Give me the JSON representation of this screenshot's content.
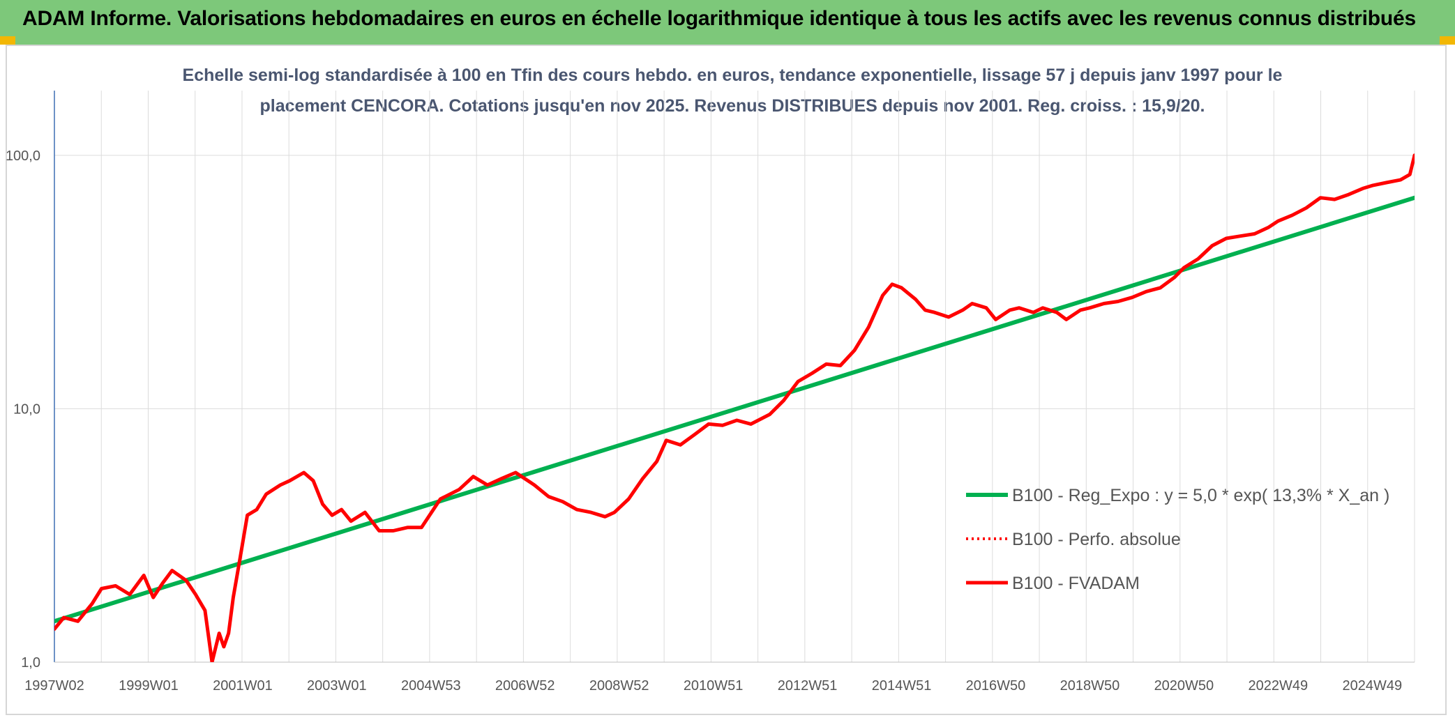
{
  "banner": {
    "title": "ADAM Informe. Valorisations hebdomadaires en euros en échelle logarithmique identique à tous les actifs avec les revenus connus distribués"
  },
  "colors": {
    "banner_bg": "#7dc87a",
    "corner_accent": "#f2b705",
    "trend_line": "#00b050",
    "price_line": "#ff0000",
    "title_text": "#4a5670"
  },
  "chart_data": {
    "type": "line",
    "title_lines": [
      "Echelle semi-log standardisée à 100 en Tfin des cours hebdo. en euros, tendance exponentielle, lissage 57 j depuis janv 1997 pour le",
      "placement CENCORA. Cotations jusqu'en nov 2025. Revenus DISTRIBUES depuis nov 2001. Reg. croiss. : 15,9/20."
    ],
    "y_scale": "log",
    "ylim": [
      1,
      180
    ],
    "y_ticks": [
      1,
      10,
      100
    ],
    "y_tick_labels": [
      "1,0",
      "10,0",
      "100,0"
    ],
    "xlim": [
      1997.0,
      2025.9
    ],
    "x_tick_labels": [
      "1997W02",
      "1999W01",
      "2001W01",
      "2003W01",
      "2004W53",
      "2006W52",
      "2008W52",
      "2010W51",
      "2012W51",
      "2014W51",
      "2016W50",
      "2018W50",
      "2020W50",
      "2022W49",
      "2024W49"
    ],
    "x_tick_positions": [
      1997.0,
      1999.0,
      2001.0,
      2003.0,
      2005.0,
      2007.0,
      2009.0,
      2011.0,
      2013.0,
      2015.0,
      2017.0,
      2019.0,
      2021.0,
      2023.0,
      2025.0
    ],
    "grid": true,
    "legend_position": "right",
    "series": [
      {
        "name": "B100 - Reg_Expo : y = 5,0 * exp( 13,3% *  X_an )",
        "style": "solid-thick",
        "color": "#00b050",
        "x": [
          1997.0,
          2025.9
        ],
        "y": [
          1.45,
          68
        ]
      },
      {
        "name": "B100 - Perfo. absolue",
        "style": "dotted",
        "color": "#ff0000",
        "x": [],
        "y": []
      },
      {
        "name": "B100 - FVADAM",
        "style": "solid",
        "color": "#ff0000",
        "x": [
          1997.0,
          1997.2,
          1997.5,
          1997.8,
          1998.0,
          1998.3,
          1998.6,
          1998.9,
          1999.1,
          1999.3,
          1999.5,
          1999.8,
          2000.0,
          2000.2,
          2000.35,
          2000.5,
          2000.6,
          2000.7,
          2000.8,
          2000.95,
          2001.1,
          2001.3,
          2001.5,
          2001.8,
          2002.0,
          2002.3,
          2002.5,
          2002.7,
          2002.9,
          2003.1,
          2003.3,
          2003.6,
          2003.9,
          2004.2,
          2004.5,
          2004.8,
          2005.2,
          2005.6,
          2005.9,
          2006.2,
          2006.5,
          2006.8,
          2007.2,
          2007.5,
          2007.8,
          2008.1,
          2008.4,
          2008.7,
          2008.9,
          2009.2,
          2009.5,
          2009.8,
          2010.0,
          2010.3,
          2010.6,
          2010.9,
          2011.2,
          2011.5,
          2011.8,
          2012.2,
          2012.5,
          2012.8,
          2013.1,
          2013.4,
          2013.7,
          2014.0,
          2014.3,
          2014.6,
          2014.8,
          2015.0,
          2015.3,
          2015.5,
          2015.7,
          2016.0,
          2016.3,
          2016.5,
          2016.8,
          2017.0,
          2017.3,
          2017.5,
          2017.8,
          2018.0,
          2018.3,
          2018.5,
          2018.8,
          2019.0,
          2019.3,
          2019.6,
          2019.9,
          2020.2,
          2020.5,
          2020.8,
          2021.0,
          2021.3,
          2021.6,
          2021.9,
          2022.2,
          2022.5,
          2022.8,
          2023.0,
          2023.3,
          2023.6,
          2023.9,
          2024.2,
          2024.5,
          2024.8,
          2025.0,
          2025.3,
          2025.6,
          2025.8,
          2025.9
        ],
        "y": [
          1.35,
          1.5,
          1.45,
          1.7,
          1.95,
          2.0,
          1.85,
          2.2,
          1.8,
          2.05,
          2.3,
          2.1,
          1.85,
          1.6,
          1.0,
          1.3,
          1.15,
          1.3,
          1.8,
          2.6,
          3.8,
          4.0,
          4.6,
          5.0,
          5.2,
          5.6,
          5.2,
          4.2,
          3.8,
          4.0,
          3.6,
          3.9,
          3.3,
          3.3,
          3.4,
          3.4,
          4.4,
          4.8,
          5.4,
          5.0,
          5.3,
          5.6,
          5.0,
          4.5,
          4.3,
          4.0,
          3.9,
          3.75,
          3.9,
          4.4,
          5.3,
          6.2,
          7.5,
          7.2,
          7.9,
          8.7,
          8.6,
          9.0,
          8.7,
          9.5,
          10.8,
          12.8,
          13.8,
          15.0,
          14.8,
          17.0,
          21.0,
          28.0,
          31.0,
          30.0,
          27.0,
          24.5,
          24.0,
          23.0,
          24.5,
          26.0,
          25.0,
          22.5,
          24.5,
          25.0,
          24.0,
          25.0,
          24.0,
          22.5,
          24.5,
          25.0,
          26.0,
          26.5,
          27.5,
          29.0,
          30.0,
          33.0,
          36.0,
          39.0,
          44.0,
          47.0,
          48.0,
          49.0,
          52.0,
          55.0,
          58.0,
          62.0,
          68.0,
          67.0,
          70.0,
          74.0,
          76.0,
          78.0,
          80.0,
          84.0,
          100.0
        ]
      }
    ]
  }
}
